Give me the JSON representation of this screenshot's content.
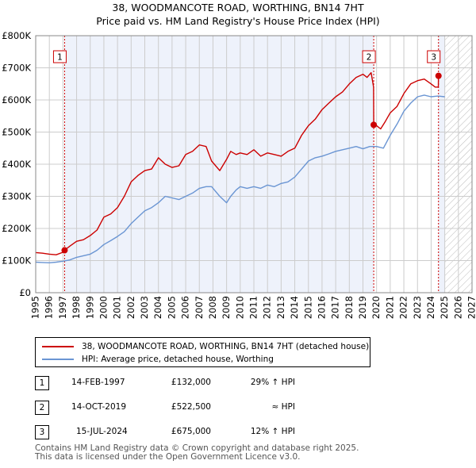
{
  "chart_data": {
    "type": "line",
    "title": "38, WOODMANCOTE ROAD, WORTHING, BN14 7HT",
    "subtitle": "Price paid vs. HM Land Registry's House Price Index (HPI)",
    "xlim": [
      1995,
      2027
    ],
    "ylim": [
      0,
      800000
    ],
    "x_ticks": [
      1995,
      1996,
      1997,
      1998,
      1999,
      2000,
      2001,
      2002,
      2003,
      2004,
      2005,
      2006,
      2007,
      2008,
      2009,
      2010,
      2011,
      2012,
      2013,
      2014,
      2015,
      2016,
      2017,
      2018,
      2019,
      2020,
      2021,
      2022,
      2023,
      2024,
      2025,
      2026,
      2027
    ],
    "y_ticks": [
      {
        "value": 0,
        "label": "£0"
      },
      {
        "value": 100000,
        "label": "£100K"
      },
      {
        "value": 200000,
        "label": "£200K"
      },
      {
        "value": 300000,
        "label": "£300K"
      },
      {
        "value": 400000,
        "label": "£400K"
      },
      {
        "value": 500000,
        "label": "£500K"
      },
      {
        "value": 600000,
        "label": "£600K"
      },
      {
        "value": 700000,
        "label": "£700K"
      },
      {
        "value": 800000,
        "label": "£800K"
      }
    ],
    "sale_spans": [
      [
        1997.12,
        2019.79
      ],
      [
        2024.54,
        2025.0
      ]
    ],
    "future_from": 2025.0,
    "series": [
      {
        "name": "38, WOODMANCOTE ROAD, WORTHING, BN14 7HT (detached house)",
        "color": "#cc0000",
        "x": [
          1995.0,
          1995.5,
          1996.0,
          1996.5,
          1997.0,
          1997.12,
          1997.5,
          1998.0,
          1998.5,
          1999.0,
          1999.5,
          2000.0,
          2000.5,
          2001.0,
          2001.5,
          2002.0,
          2002.5,
          2003.0,
          2003.5,
          2004.0,
          2004.5,
          2005.0,
          2005.5,
          2006.0,
          2006.5,
          2007.0,
          2007.5,
          2007.9,
          2008.5,
          2009.0,
          2009.3,
          2009.7,
          2010.0,
          2010.5,
          2011.0,
          2011.5,
          2012.0,
          2012.5,
          2013.0,
          2013.5,
          2014.0,
          2014.5,
          2015.0,
          2015.5,
          2016.0,
          2016.5,
          2017.0,
          2017.5,
          2018.0,
          2018.5,
          2019.0,
          2019.3,
          2019.6,
          2019.78,
          2019.79,
          2020.0,
          2020.3,
          2020.6,
          2021.0,
          2021.5,
          2022.0,
          2022.5,
          2023.0,
          2023.5,
          2024.0,
          2024.3,
          2024.53,
          2024.54,
          2024.7
        ],
        "values": [
          125000,
          123000,
          120000,
          118000,
          126000,
          132000,
          145000,
          160000,
          165000,
          178000,
          195000,
          235000,
          245000,
          265000,
          300000,
          345000,
          365000,
          380000,
          385000,
          420000,
          400000,
          390000,
          395000,
          430000,
          440000,
          460000,
          455000,
          410000,
          380000,
          415000,
          440000,
          430000,
          435000,
          430000,
          445000,
          425000,
          435000,
          430000,
          425000,
          440000,
          450000,
          490000,
          520000,
          540000,
          570000,
          590000,
          610000,
          625000,
          650000,
          670000,
          680000,
          670000,
          685000,
          640000,
          522500,
          520000,
          510000,
          530000,
          560000,
          580000,
          620000,
          650000,
          660000,
          665000,
          650000,
          640000,
          640000,
          675000,
          680000
        ]
      },
      {
        "name": "HPI: Average price, detached house, Worthing",
        "color": "#6a95d3",
        "x": [
          1995.0,
          1995.5,
          1996.0,
          1996.5,
          1997.0,
          1997.5,
          1998.0,
          1998.5,
          1999.0,
          1999.5,
          2000.0,
          2000.5,
          2001.0,
          2001.5,
          2002.0,
          2002.5,
          2003.0,
          2003.5,
          2004.0,
          2004.5,
          2005.0,
          2005.5,
          2006.0,
          2006.5,
          2007.0,
          2007.5,
          2007.9,
          2008.5,
          2009.0,
          2009.3,
          2009.7,
          2010.0,
          2010.5,
          2011.0,
          2011.5,
          2012.0,
          2012.5,
          2013.0,
          2013.5,
          2014.0,
          2014.5,
          2015.0,
          2015.5,
          2016.0,
          2016.5,
          2017.0,
          2017.5,
          2018.0,
          2018.5,
          2019.0,
          2019.5,
          2020.0,
          2020.5,
          2021.0,
          2021.5,
          2022.0,
          2022.5,
          2023.0,
          2023.5,
          2024.0,
          2024.5,
          2025.0
        ],
        "values": [
          95000,
          94000,
          93000,
          95000,
          98000,
          102000,
          110000,
          115000,
          120000,
          132000,
          150000,
          162000,
          175000,
          190000,
          215000,
          235000,
          255000,
          265000,
          280000,
          300000,
          295000,
          290000,
          300000,
          310000,
          325000,
          330000,
          330000,
          300000,
          280000,
          300000,
          320000,
          330000,
          325000,
          330000,
          325000,
          335000,
          330000,
          340000,
          345000,
          360000,
          385000,
          410000,
          420000,
          425000,
          432000,
          440000,
          445000,
          450000,
          455000,
          448000,
          455000,
          455000,
          450000,
          490000,
          525000,
          565000,
          590000,
          610000,
          615000,
          610000,
          612000,
          610000
        ]
      }
    ],
    "sales": [
      {
        "num": "1",
        "x": 1997.12,
        "value": 132000
      },
      {
        "num": "2",
        "x": 2019.79,
        "value": 522500
      },
      {
        "num": "3",
        "x": 2024.54,
        "value": 675000
      }
    ]
  },
  "legend": {
    "property_label": "38, WOODMANCOTE ROAD, WORTHING, BN14 7HT (detached house)",
    "hpi_label": "HPI: Average price, detached house, Worthing"
  },
  "table": [
    {
      "num": "1",
      "date": "14-FEB-1997",
      "price": "£132,000",
      "hpi": "29% ↑ HPI"
    },
    {
      "num": "2",
      "date": "14-OCT-2019",
      "price": "£522,500",
      "hpi": "≈ HPI"
    },
    {
      "num": "3",
      "date": "15-JUL-2024",
      "price": "£675,000",
      "hpi": "12% ↑ HPI"
    }
  ],
  "footer": {
    "line1": "Contains HM Land Registry data © Crown copyright and database right 2025.",
    "line2": "This data is licensed under the Open Government Licence v3.0."
  },
  "colors": {
    "property": "#cc0000",
    "hpi": "#6a95d3",
    "span_fill": "#eef2fb",
    "grid": "#cccccc"
  }
}
